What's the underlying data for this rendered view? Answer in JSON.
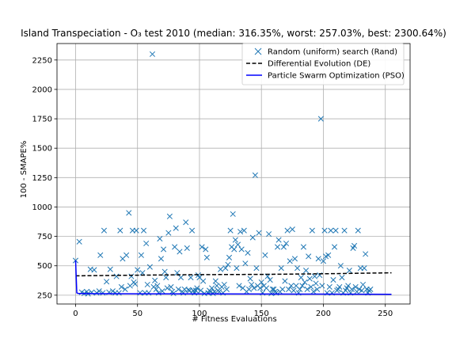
{
  "chart_data": {
    "type": "scatter",
    "title": "Island Transpeciation - O₃ test 2010 (median: 316.35%, worst: 257.03%, best: 2300.64%)",
    "xlabel": "# Fitness Evaluations",
    "ylabel": "100 - SMAPE%",
    "xlim": [
      -15,
      270
    ],
    "ylim": [
      175,
      2390
    ],
    "xticks": [
      0,
      50,
      100,
      150,
      200,
      250
    ],
    "yticks": [
      250,
      500,
      750,
      1000,
      1250,
      1500,
      1750,
      2000,
      2250
    ],
    "grid": true,
    "legend_position": "top-right",
    "series": [
      {
        "name": "Random (uniform) search (Rand)",
        "kind": "scatter",
        "marker": "x",
        "color": "#1f77b4",
        "points": [
          [
            0,
            545
          ],
          [
            3,
            705
          ],
          [
            5,
            275
          ],
          [
            7,
            265
          ],
          [
            9,
            280
          ],
          [
            10,
            262
          ],
          [
            12,
            470
          ],
          [
            13,
            275
          ],
          [
            15,
            465
          ],
          [
            17,
            270
          ],
          [
            19,
            285
          ],
          [
            20,
            590
          ],
          [
            22,
            270
          ],
          [
            23,
            800
          ],
          [
            25,
            365
          ],
          [
            27,
            275
          ],
          [
            28,
            470
          ],
          [
            30,
            285
          ],
          [
            32,
            270
          ],
          [
            33,
            410
          ],
          [
            35,
            270
          ],
          [
            36,
            800
          ],
          [
            37,
            320
          ],
          [
            38,
            560
          ],
          [
            40,
            300
          ],
          [
            41,
            590
          ],
          [
            43,
            950
          ],
          [
            44,
            330
          ],
          [
            45,
            410
          ],
          [
            46,
            800
          ],
          [
            47,
            360
          ],
          [
            48,
            345
          ],
          [
            49,
            800
          ],
          [
            50,
            465
          ],
          [
            52,
            270
          ],
          [
            53,
            590
          ],
          [
            54,
            440
          ],
          [
            55,
            800
          ],
          [
            56,
            270
          ],
          [
            57,
            690
          ],
          [
            58,
            340
          ],
          [
            59,
            270
          ],
          [
            60,
            490
          ],
          [
            62,
            2300
          ],
          [
            63,
            320
          ],
          [
            64,
            375
          ],
          [
            65,
            300
          ],
          [
            66,
            330
          ],
          [
            67,
            270
          ],
          [
            68,
            730
          ],
          [
            69,
            560
          ],
          [
            70,
            285
          ],
          [
            71,
            640
          ],
          [
            72,
            450
          ],
          [
            73,
            400
          ],
          [
            74,
            310
          ],
          [
            75,
            780
          ],
          [
            76,
            920
          ],
          [
            77,
            320
          ],
          [
            78,
            280
          ],
          [
            79,
            265
          ],
          [
            80,
            660
          ],
          [
            81,
            820
          ],
          [
            82,
            440
          ],
          [
            83,
            300
          ],
          [
            84,
            620
          ],
          [
            85,
            400
          ],
          [
            86,
            280
          ],
          [
            87,
            270
          ],
          [
            88,
            300
          ],
          [
            89,
            870
          ],
          [
            90,
            650
          ],
          [
            91,
            295
          ],
          [
            92,
            290
          ],
          [
            93,
            400
          ],
          [
            94,
            800
          ],
          [
            95,
            290
          ],
          [
            96,
            270
          ],
          [
            97,
            290
          ],
          [
            98,
            310
          ],
          [
            99,
            420
          ],
          [
            100,
            400
          ],
          [
            101,
            290
          ],
          [
            102,
            660
          ],
          [
            103,
            370
          ],
          [
            104,
            265
          ],
          [
            105,
            640
          ],
          [
            106,
            570
          ],
          [
            107,
            270
          ],
          [
            108,
            290
          ],
          [
            109,
            280
          ],
          [
            110,
            310
          ],
          [
            111,
            265
          ],
          [
            112,
            280
          ],
          [
            113,
            370
          ],
          [
            114,
            330
          ],
          [
            115,
            290
          ],
          [
            116,
            280
          ],
          [
            117,
            470
          ],
          [
            118,
            320
          ],
          [
            119,
            270
          ],
          [
            120,
            340
          ],
          [
            121,
            480
          ],
          [
            122,
            300
          ],
          [
            123,
            510
          ],
          [
            124,
            570
          ],
          [
            125,
            800
          ],
          [
            126,
            660
          ],
          [
            127,
            940
          ],
          [
            128,
            640
          ],
          [
            129,
            720
          ],
          [
            130,
            480
          ],
          [
            131,
            680
          ],
          [
            132,
            330
          ],
          [
            133,
            790
          ],
          [
            134,
            640
          ],
          [
            135,
            310
          ],
          [
            136,
            800
          ],
          [
            137,
            520
          ],
          [
            138,
            280
          ],
          [
            139,
            610
          ],
          [
            140,
            300
          ],
          [
            141,
            390
          ],
          [
            142,
            340
          ],
          [
            143,
            740
          ],
          [
            144,
            310
          ],
          [
            145,
            1270
          ],
          [
            146,
            480
          ],
          [
            147,
            330
          ],
          [
            148,
            780
          ],
          [
            149,
            310
          ],
          [
            150,
            360
          ],
          [
            151,
            270
          ],
          [
            152,
            330
          ],
          [
            153,
            590
          ],
          [
            154,
            310
          ],
          [
            155,
            410
          ],
          [
            156,
            770
          ],
          [
            157,
            380
          ],
          [
            158,
            265
          ],
          [
            159,
            300
          ],
          [
            160,
            300
          ],
          [
            161,
            280
          ],
          [
            162,
            270
          ],
          [
            163,
            660
          ],
          [
            164,
            720
          ],
          [
            165,
            280
          ],
          [
            166,
            480
          ],
          [
            167,
            300
          ],
          [
            168,
            660
          ],
          [
            169,
            370
          ],
          [
            170,
            690
          ],
          [
            171,
            800
          ],
          [
            172,
            300
          ],
          [
            173,
            540
          ],
          [
            174,
            330
          ],
          [
            175,
            810
          ],
          [
            176,
            290
          ],
          [
            177,
            560
          ],
          [
            178,
            330
          ],
          [
            179,
            480
          ],
          [
            180,
            270
          ],
          [
            181,
            300
          ],
          [
            182,
            400
          ],
          [
            183,
            330
          ],
          [
            184,
            660
          ],
          [
            185,
            360
          ],
          [
            186,
            460
          ],
          [
            187,
            300
          ],
          [
            188,
            580
          ],
          [
            189,
            390
          ],
          [
            190,
            320
          ],
          [
            191,
            800
          ],
          [
            192,
            280
          ],
          [
            193,
            410
          ],
          [
            194,
            350
          ],
          [
            195,
            300
          ],
          [
            196,
            560
          ],
          [
            197,
            420
          ],
          [
            198,
            1750
          ],
          [
            199,
            330
          ],
          [
            200,
            540
          ],
          [
            201,
            800
          ],
          [
            202,
            580
          ],
          [
            203,
            270
          ],
          [
            204,
            590
          ],
          [
            205,
            320
          ],
          [
            206,
            800
          ],
          [
            207,
            270
          ],
          [
            208,
            380
          ],
          [
            209,
            660
          ],
          [
            210,
            800
          ],
          [
            211,
            290
          ],
          [
            212,
            300
          ],
          [
            213,
            320
          ],
          [
            214,
            500
          ],
          [
            215,
            400
          ],
          [
            216,
            270
          ],
          [
            217,
            800
          ],
          [
            218,
            290
          ],
          [
            219,
            310
          ],
          [
            220,
            330
          ],
          [
            221,
            460
          ],
          [
            222,
            270
          ],
          [
            223,
            300
          ],
          [
            224,
            650
          ],
          [
            225,
            670
          ],
          [
            226,
            320
          ],
          [
            227,
            280
          ],
          [
            228,
            800
          ],
          [
            229,
            300
          ],
          [
            230,
            480
          ],
          [
            231,
            290
          ],
          [
            232,
            340
          ],
          [
            233,
            480
          ],
          [
            234,
            600
          ],
          [
            235,
            300
          ],
          [
            236,
            270
          ],
          [
            237,
            290
          ],
          [
            238,
            300
          ]
        ]
      },
      {
        "name": "Differential Evolution (DE)",
        "kind": "line",
        "dash": "dashed",
        "color": "#000000",
        "points": [
          [
            0,
            415
          ],
          [
            50,
            420
          ],
          [
            100,
            425
          ],
          [
            150,
            427
          ],
          [
            200,
            432
          ],
          [
            255,
            440
          ]
        ]
      },
      {
        "name": "Particle Swarm Optimization (PSO)",
        "kind": "line",
        "dash": "solid",
        "color": "#0000ff",
        "points": [
          [
            0,
            545
          ],
          [
            1,
            270
          ],
          [
            2,
            265
          ],
          [
            10,
            263
          ],
          [
            50,
            262
          ],
          [
            100,
            261
          ],
          [
            150,
            260
          ],
          [
            200,
            259
          ],
          [
            255,
            258
          ]
        ]
      }
    ]
  }
}
